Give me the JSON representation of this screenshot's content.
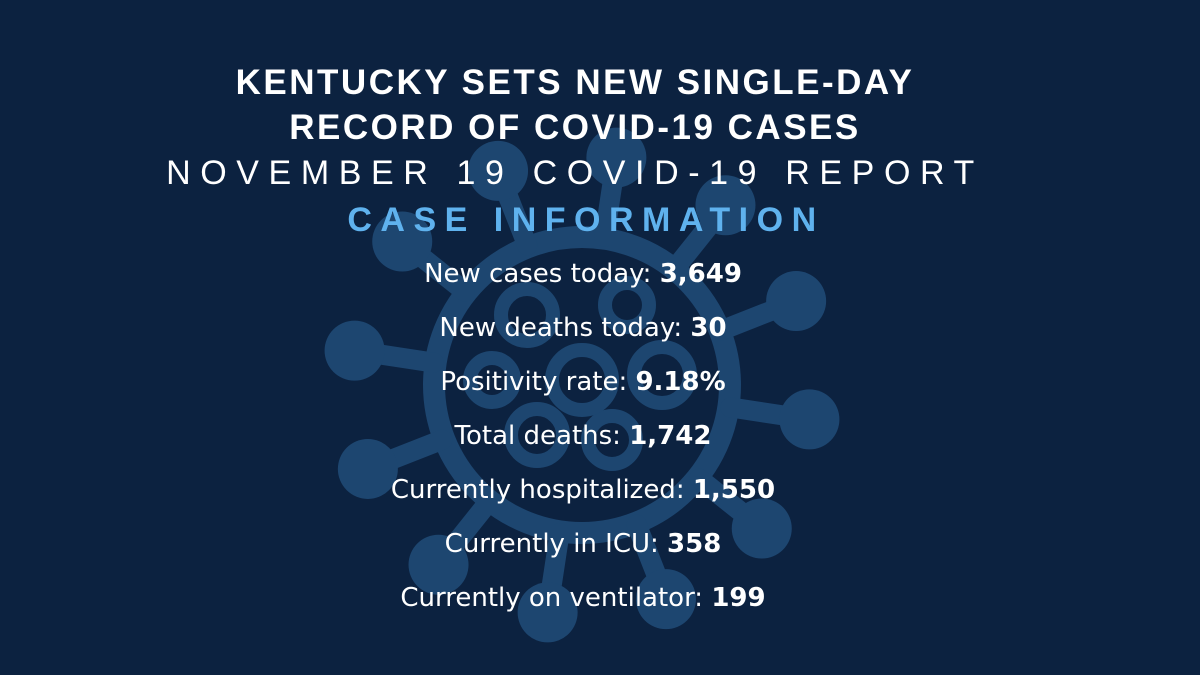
{
  "colors": {
    "background": "#0c2240",
    "virus_graphic": "#1d4670",
    "headline": "#ffffff",
    "section_title": "#5fb2ee",
    "stat_text": "#ffffff"
  },
  "background_icon": "coronavirus-icon",
  "headline": {
    "line1": "KENTUCKY SETS NEW SINGLE-DAY",
    "line2": "RECORD OF COVID-19 CASES"
  },
  "subtitle": "NOVEMBER 19 COVID-19 REPORT",
  "section_title": "CASE INFORMATION",
  "stats": [
    {
      "label": "New cases today:",
      "value": "3,649"
    },
    {
      "label": "New deaths today:",
      "value": "30"
    },
    {
      "label": "Positivity rate:",
      "value": "9.18%"
    },
    {
      "label": "Total deaths:",
      "value": "1,742"
    },
    {
      "label": "Currently hospitalized:",
      "value": "1,550"
    },
    {
      "label": "Currently in ICU:",
      "value": "358"
    },
    {
      "label": "Currently on ventilator:",
      "value": "199"
    }
  ]
}
